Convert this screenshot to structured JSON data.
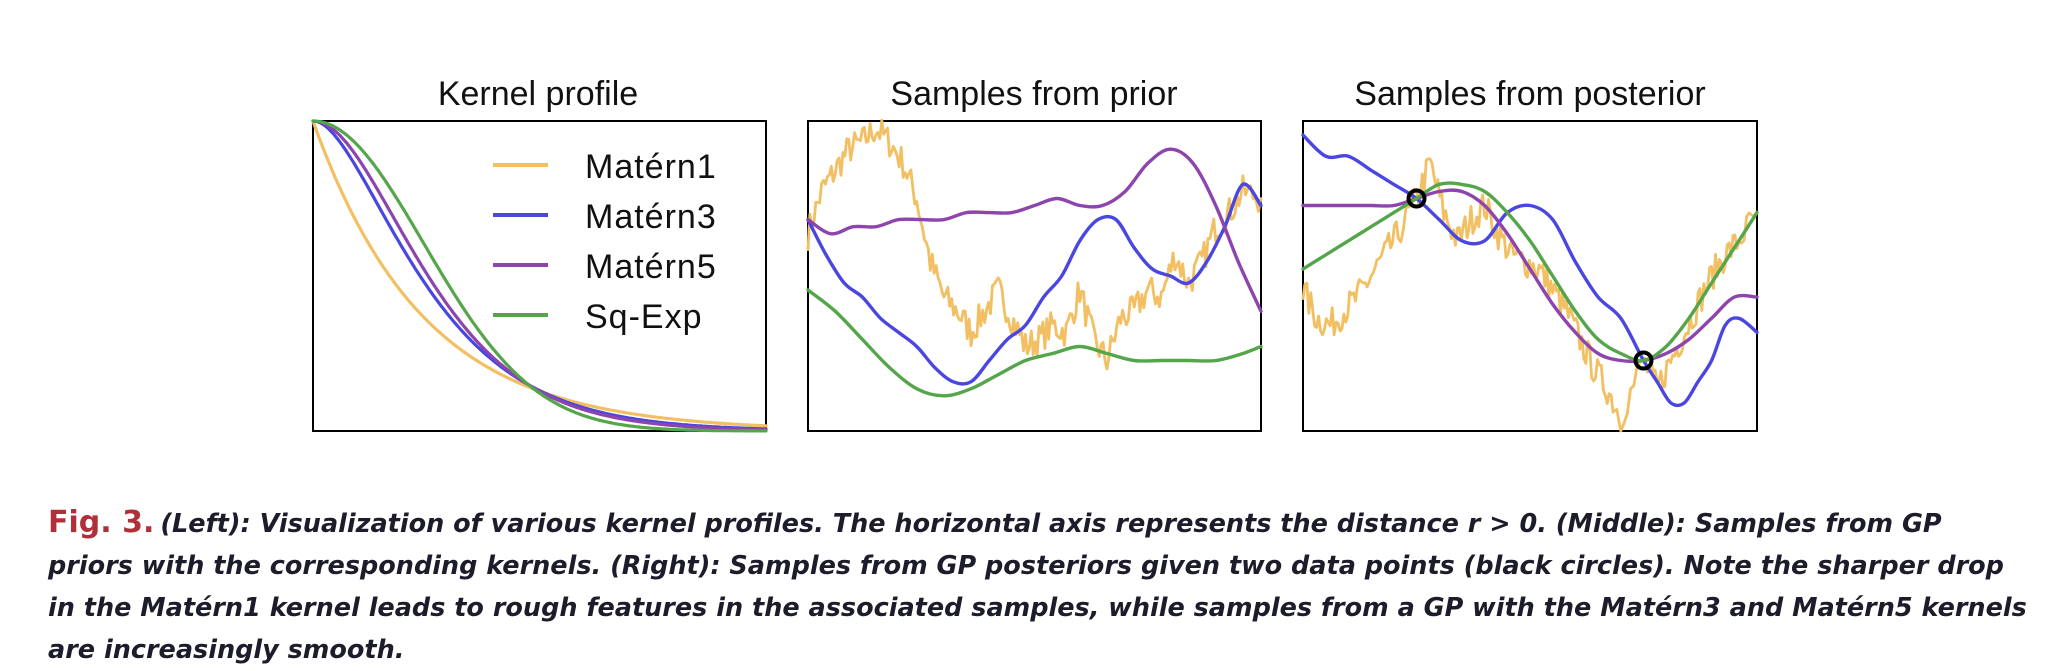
{
  "chart_data": [
    {
      "type": "line",
      "title": "Kernel profile",
      "xlabel": "",
      "ylabel": "",
      "legend_position": "top-right",
      "xlim": [
        0,
        5
      ],
      "ylim": [
        0,
        1
      ],
      "grid": false,
      "series": [
        {
          "name": "Matérn1",
          "kernel": "matern1",
          "color": "#f2c063"
        },
        {
          "name": "Matérn3",
          "kernel": "matern3",
          "color": "#4a46e0"
        },
        {
          "name": "Matérn5",
          "kernel": "matern5",
          "color": "#8e44ad"
        },
        {
          "name": "Sq-Exp",
          "kernel": "sqexp",
          "color": "#55a54b"
        }
      ]
    },
    {
      "type": "line",
      "title": "Samples from prior",
      "xlabel": "",
      "ylabel": "",
      "xlim": [
        0,
        10
      ],
      "ylim": [
        -2.2,
        2.2
      ],
      "grid": false,
      "series": [
        {
          "name": "Matérn1",
          "color": "#f2c063",
          "rough": true,
          "x": [
            0,
            0.3,
            0.6,
            0.9,
            1.2,
            1.5,
            1.8,
            2.1,
            2.4,
            2.7,
            3.0,
            3.3,
            3.6,
            3.9,
            4.2,
            4.5,
            4.8,
            5.1,
            5.4,
            5.7,
            6.0,
            6.3,
            6.6,
            6.9,
            7.2,
            7.5,
            7.8,
            8.1,
            8.4,
            8.7,
            9.0,
            9.3,
            9.6,
            10.0
          ],
          "y": [
            0.6,
            1.2,
            1.5,
            1.8,
            1.9,
            2.1,
            1.9,
            1.6,
            1.1,
            0.2,
            -0.3,
            -0.5,
            -0.8,
            -0.5,
            -0.2,
            -0.6,
            -1.0,
            -0.9,
            -0.7,
            -0.8,
            -0.2,
            -0.9,
            -1.2,
            -0.6,
            -0.5,
            -0.2,
            -0.3,
            0.3,
            -0.1,
            0.2,
            0.7,
            0.9,
            1.2,
            1.1
          ]
        },
        {
          "name": "Matérn3",
          "color": "#4a46e0",
          "x": [
            0,
            0.4,
            0.8,
            1.2,
            1.6,
            2.0,
            2.4,
            2.8,
            3.2,
            3.6,
            4.0,
            4.4,
            4.8,
            5.2,
            5.6,
            6.0,
            6.4,
            6.8,
            7.2,
            7.6,
            8.0,
            8.4,
            8.8,
            9.2,
            9.6,
            10.0
          ],
          "y": [
            0.8,
            0.3,
            -0.1,
            -0.3,
            -0.6,
            -0.8,
            -1.0,
            -1.3,
            -1.5,
            -1.5,
            -1.2,
            -0.9,
            -0.7,
            -0.3,
            0.0,
            0.5,
            0.8,
            0.8,
            0.4,
            0.1,
            0.0,
            -0.1,
            0.2,
            0.7,
            1.3,
            1.0
          ]
        },
        {
          "name": "Matérn5",
          "color": "#8e44ad",
          "x": [
            0,
            0.5,
            1.0,
            1.5,
            2.0,
            2.5,
            3.0,
            3.5,
            4.0,
            4.5,
            5.0,
            5.5,
            6.0,
            6.5,
            7.0,
            7.5,
            8.0,
            8.5,
            9.0,
            9.5,
            10.0
          ],
          "y": [
            0.8,
            0.6,
            0.7,
            0.7,
            0.8,
            0.8,
            0.8,
            0.9,
            0.9,
            0.9,
            1.0,
            1.1,
            1.0,
            1.0,
            1.2,
            1.6,
            1.8,
            1.6,
            1.0,
            0.2,
            -0.5
          ]
        },
        {
          "name": "Sq-Exp",
          "color": "#55a54b",
          "x": [
            0,
            0.6,
            1.2,
            1.8,
            2.4,
            3.0,
            3.6,
            4.2,
            4.8,
            5.4,
            6.0,
            6.6,
            7.2,
            7.8,
            8.4,
            9.0,
            9.6,
            10.0
          ],
          "y": [
            -0.2,
            -0.5,
            -0.9,
            -1.3,
            -1.6,
            -1.7,
            -1.6,
            -1.4,
            -1.2,
            -1.1,
            -1.0,
            -1.1,
            -1.2,
            -1.2,
            -1.2,
            -1.2,
            -1.1,
            -1.0
          ]
        }
      ]
    },
    {
      "type": "line",
      "title": "Samples from posterior",
      "xlabel": "",
      "ylabel": "",
      "xlim": [
        0,
        10
      ],
      "ylim": [
        -2.2,
        2.2
      ],
      "grid": false,
      "observations": [
        {
          "x": 2.5,
          "y": 1.1
        },
        {
          "x": 7.5,
          "y": -1.2
        }
      ],
      "series": [
        {
          "name": "Matérn1",
          "color": "#f2c063",
          "rough": true,
          "x": [
            0,
            0.3,
            0.6,
            0.9,
            1.2,
            1.5,
            1.8,
            2.1,
            2.5,
            2.8,
            3.1,
            3.4,
            3.7,
            4.0,
            4.3,
            4.6,
            4.9,
            5.2,
            5.5,
            5.8,
            6.1,
            6.4,
            6.7,
            7.0,
            7.5,
            7.8,
            8.1,
            8.4,
            8.7,
            9.0,
            9.3,
            9.6,
            10.0
          ],
          "y": [
            -0.2,
            -0.6,
            -0.7,
            -0.5,
            -0.3,
            0.0,
            0.3,
            0.6,
            1.1,
            1.6,
            0.9,
            0.5,
            0.8,
            1.0,
            0.6,
            0.3,
            0.2,
            0.1,
            -0.2,
            -0.5,
            -0.9,
            -1.3,
            -1.6,
            -2.0,
            -1.2,
            -1.6,
            -1.2,
            -0.8,
            -0.4,
            0.0,
            0.3,
            0.5,
            0.9
          ]
        },
        {
          "name": "Matérn3",
          "color": "#4a46e0",
          "x": [
            0,
            0.5,
            1.0,
            1.5,
            2.0,
            2.5,
            3.0,
            3.5,
            4.0,
            4.5,
            5.0,
            5.5,
            6.0,
            6.5,
            7.0,
            7.5,
            7.8,
            8.1,
            8.4,
            8.7,
            9.0,
            9.3,
            9.6,
            10.0
          ],
          "y": [
            2.0,
            1.7,
            1.7,
            1.5,
            1.3,
            1.1,
            0.8,
            0.5,
            0.5,
            0.9,
            1.0,
            0.8,
            0.2,
            -0.3,
            -0.6,
            -1.2,
            -1.5,
            -1.8,
            -1.8,
            -1.5,
            -1.2,
            -0.7,
            -0.6,
            -0.8
          ]
        },
        {
          "name": "Matérn5",
          "color": "#8e44ad",
          "x": [
            0,
            0.5,
            1.0,
            1.5,
            2.0,
            2.5,
            3.0,
            3.5,
            4.0,
            4.5,
            5.0,
            5.5,
            6.0,
            6.5,
            7.0,
            7.5,
            8.0,
            8.5,
            9.0,
            9.5,
            10.0
          ],
          "y": [
            1.0,
            1.0,
            1.0,
            1.0,
            1.0,
            1.1,
            1.2,
            1.2,
            1.0,
            0.6,
            0.1,
            -0.4,
            -0.8,
            -1.1,
            -1.2,
            -1.2,
            -1.1,
            -0.9,
            -0.6,
            -0.3,
            -0.3
          ]
        },
        {
          "name": "Sq-Exp",
          "color": "#55a54b",
          "x": [
            0,
            0.5,
            1.0,
            1.5,
            2.0,
            2.5,
            3.0,
            3.5,
            4.0,
            4.5,
            5.0,
            5.5,
            6.0,
            6.5,
            7.0,
            7.5,
            8.0,
            8.5,
            9.0,
            9.5,
            10.0
          ],
          "y": [
            0.1,
            0.3,
            0.5,
            0.7,
            0.9,
            1.1,
            1.3,
            1.3,
            1.2,
            0.9,
            0.5,
            0.0,
            -0.5,
            -0.9,
            -1.1,
            -1.2,
            -1.0,
            -0.6,
            -0.1,
            0.4,
            0.9
          ]
        }
      ]
    }
  ],
  "caption": {
    "label": "Fig. 3.",
    "text": "(Left): Visualization of various kernel profiles. The horizontal axis represents the distance r > 0. (Middle): Samples from GP priors with the corresponding kernels. (Right): Samples from GP posteriors given two data points (black circles). Note the sharper drop in the Matérn1 kernel leads to rough features in the associated samples, while samples from a GP with the Matérn3 and Matérn5 kernels are increasingly smooth."
  }
}
